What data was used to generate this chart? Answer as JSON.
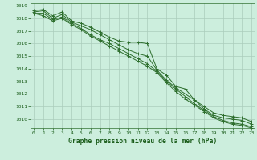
{
  "background_color": "#cceedd",
  "grid_color": "#aaccbb",
  "line_color": "#2d6e2d",
  "xlabel": "Graphe pression niveau de la mer (hPa)",
  "xlabel_color": "#1a5c1a",
  "tick_color": "#1a5c1a",
  "ylim": [
    1009.3,
    1019.2
  ],
  "xlim": [
    -0.3,
    23.3
  ],
  "yticks": [
    1010,
    1011,
    1012,
    1013,
    1014,
    1015,
    1016,
    1017,
    1018,
    1019
  ],
  "xticks": [
    0,
    1,
    2,
    3,
    4,
    5,
    6,
    7,
    8,
    9,
    10,
    11,
    12,
    13,
    14,
    15,
    16,
    17,
    18,
    19,
    20,
    21,
    22,
    23
  ],
  "series": [
    [
      1018.6,
      1018.7,
      1018.2,
      1018.5,
      1017.8,
      1017.6,
      1017.3,
      1016.9,
      1016.5,
      1016.2,
      1016.1,
      1016.1,
      1016.0,
      1014.0,
      1013.5,
      1012.6,
      1012.4,
      1011.5,
      1011.0,
      1010.5,
      1010.3,
      1010.2,
      1010.1,
      1009.8
    ],
    [
      1018.5,
      1018.6,
      1018.0,
      1018.3,
      1017.7,
      1017.4,
      1017.1,
      1016.7,
      1016.3,
      1015.9,
      1015.5,
      1015.2,
      1015.0,
      1013.9,
      1013.1,
      1012.5,
      1012.0,
      1011.5,
      1010.8,
      1010.3,
      1010.1,
      1010.0,
      1009.9,
      1009.6
    ],
    [
      1018.4,
      1018.4,
      1017.9,
      1018.1,
      1017.6,
      1017.2,
      1016.7,
      1016.3,
      1016.0,
      1015.6,
      1015.2,
      1014.8,
      1014.4,
      1013.8,
      1013.0,
      1012.4,
      1011.8,
      1011.2,
      1010.7,
      1010.2,
      1009.9,
      1009.7,
      1009.6,
      1009.4
    ],
    [
      1018.4,
      1018.2,
      1017.8,
      1018.0,
      1017.5,
      1017.1,
      1016.6,
      1016.2,
      1015.8,
      1015.4,
      1015.0,
      1014.6,
      1014.2,
      1013.7,
      1012.9,
      1012.2,
      1011.6,
      1011.1,
      1010.6,
      1010.1,
      1009.8,
      1009.6,
      1009.5,
      1009.3
    ]
  ]
}
